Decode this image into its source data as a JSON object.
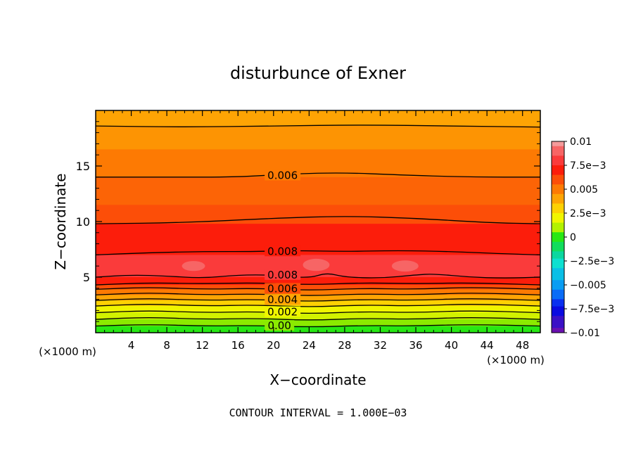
{
  "chart_data": {
    "type": "heatmap",
    "title": "disturbunce of Exner",
    "xlabel": "X−coordinate",
    "ylabel": "Z−coordinate",
    "x_unit_left": "(×1000 m)",
    "x_unit_right": "(×1000 m)",
    "xlim": [
      0,
      50
    ],
    "ylim": [
      0,
      20
    ],
    "x_ticks": [
      {
        "value": 4,
        "label": "4"
      },
      {
        "value": 8,
        "label": "8"
      },
      {
        "value": 12,
        "label": "12"
      },
      {
        "value": 16,
        "label": "16"
      },
      {
        "value": 20,
        "label": "20"
      },
      {
        "value": 24,
        "label": "24"
      },
      {
        "value": 28,
        "label": "28"
      },
      {
        "value": 32,
        "label": "32"
      },
      {
        "value": 36,
        "label": "36"
      },
      {
        "value": 40,
        "label": "40"
      },
      {
        "value": 44,
        "label": "44"
      },
      {
        "value": 48,
        "label": "48"
      }
    ],
    "y_ticks": [
      {
        "value": 5,
        "label": "5"
      },
      {
        "value": 10,
        "label": "10"
      },
      {
        "value": 15,
        "label": "15"
      }
    ],
    "footer": "CONTOUR INTERVAL = 1.000E−03",
    "contour_interval": 0.001,
    "colorbar": {
      "min": -0.01,
      "max": 0.01,
      "levels": [
        {
          "value": 0.01,
          "color": "#f49a9a"
        },
        {
          "value": 0.009,
          "color": "#f76565"
        },
        {
          "value": 0.008,
          "color": "#fa3b3b"
        },
        {
          "value": 0.007,
          "color": "#fc1d0b"
        },
        {
          "value": 0.006,
          "color": "#fc4e08"
        },
        {
          "value": 0.005,
          "color": "#fd7a03"
        },
        {
          "value": 0.004,
          "color": "#fea404"
        },
        {
          "value": 0.003,
          "color": "#fdd103"
        },
        {
          "value": 0.002,
          "color": "#f0f500"
        },
        {
          "value": 0.001,
          "color": "#b2f200"
        },
        {
          "value": 0.0,
          "color": "#28e814"
        },
        {
          "value": -0.001,
          "color": "#11dd5c"
        },
        {
          "value": -0.002,
          "color": "#0ad79f"
        },
        {
          "value": -0.0025,
          "color": "#0de0d0"
        },
        {
          "value": -0.004,
          "color": "#0abfe6"
        },
        {
          "value": -0.005,
          "color": "#0a9df3"
        },
        {
          "value": -0.006,
          "color": "#0a6cf7"
        },
        {
          "value": -0.007,
          "color": "#0a30f0"
        },
        {
          "value": -0.0075,
          "color": "#0a0ae0"
        },
        {
          "value": -0.009,
          "color": "#3a10c6"
        },
        {
          "value": -0.01,
          "color": "#6a10b0"
        }
      ],
      "tick_labels": [
        {
          "value": 0.01,
          "label": "0.01"
        },
        {
          "value": 0.0075,
          "label": "7.5e−3"
        },
        {
          "value": 0.005,
          "label": "0.005"
        },
        {
          "value": 0.0025,
          "label": "2.5e−3"
        },
        {
          "value": 0.0,
          "label": "0"
        },
        {
          "value": -0.0025,
          "label": "−2.5e−3"
        },
        {
          "value": -0.005,
          "label": "−0.005"
        },
        {
          "value": -0.0075,
          "label": "−7.5e−3"
        },
        {
          "value": -0.01,
          "label": "−0.01"
        }
      ]
    },
    "field_bands": [
      {
        "z_bottom": 18.6,
        "z_top": 20.0,
        "color": "#fea404"
      },
      {
        "z_bottom": 16.5,
        "z_top": 18.6,
        "color": "#fd9403"
      },
      {
        "z_bottom": 14.0,
        "z_top": 16.5,
        "color": "#fd7a03"
      },
      {
        "z_bottom": 11.5,
        "z_top": 14.0,
        "color": "#fc6406"
      },
      {
        "z_bottom": 9.8,
        "z_top": 11.5,
        "color": "#fc4e08"
      },
      {
        "z_bottom": 7.0,
        "z_top": 9.8,
        "color": "#fc1d0b"
      },
      {
        "z_bottom": 5.0,
        "z_top": 7.0,
        "color": "#fa3b3b"
      },
      {
        "z_bottom": 4.3,
        "z_top": 5.0,
        "color": "#fc1d0b"
      },
      {
        "z_bottom": 3.9,
        "z_top": 4.3,
        "color": "#fc4e08"
      },
      {
        "z_bottom": 3.4,
        "z_top": 3.9,
        "color": "#fd7a03"
      },
      {
        "z_bottom": 2.9,
        "z_top": 3.4,
        "color": "#fea404"
      },
      {
        "z_bottom": 2.4,
        "z_top": 2.9,
        "color": "#fdd103"
      },
      {
        "z_bottom": 1.8,
        "z_top": 2.4,
        "color": "#f0f500"
      },
      {
        "z_bottom": 1.2,
        "z_top": 1.8,
        "color": "#d2f200"
      },
      {
        "z_bottom": 0.6,
        "z_top": 1.2,
        "color": "#8bea00"
      },
      {
        "z_bottom": 0.0,
        "z_top": 0.6,
        "color": "#28e814"
      }
    ],
    "highlights": [
      {
        "x": 11.0,
        "z": 6.0,
        "rx": 1.3,
        "rz": 0.45,
        "color": "#f76565"
      },
      {
        "x": 24.8,
        "z": 6.1,
        "rx": 1.5,
        "rz": 0.55,
        "color": "#f76565"
      },
      {
        "x": 34.8,
        "z": 6.0,
        "rx": 1.5,
        "rz": 0.5,
        "color": "#f76565"
      }
    ],
    "contours": [
      {
        "level": 0.005,
        "label": "",
        "label_x": null,
        "points": [
          [
            0,
            18.6
          ],
          [
            10,
            18.5
          ],
          [
            20,
            18.6
          ],
          [
            30,
            18.7
          ],
          [
            40,
            18.6
          ],
          [
            50,
            18.5
          ]
        ]
      },
      {
        "level": 0.006,
        "label": "0.006",
        "label_x": 19.0,
        "points": [
          [
            0,
            14.0
          ],
          [
            8,
            14.0
          ],
          [
            16,
            14.0
          ],
          [
            22,
            14.3
          ],
          [
            28,
            14.4
          ],
          [
            34,
            14.2
          ],
          [
            42,
            14.0
          ],
          [
            50,
            14.0
          ]
        ]
      },
      {
        "level": 0.007,
        "label": "",
        "label_x": null,
        "points": [
          [
            0,
            9.8
          ],
          [
            10,
            9.9
          ],
          [
            20,
            10.3
          ],
          [
            28,
            10.5
          ],
          [
            36,
            10.3
          ],
          [
            44,
            9.9
          ],
          [
            50,
            9.8
          ]
        ]
      },
      {
        "level": 0.008,
        "label": "0.008",
        "label_x": 19.0,
        "points": [
          [
            0,
            7.0
          ],
          [
            6,
            7.2
          ],
          [
            12,
            7.3
          ],
          [
            18,
            7.3
          ],
          [
            22,
            7.4
          ],
          [
            28,
            7.3
          ],
          [
            34,
            7.4
          ],
          [
            40,
            7.3
          ],
          [
            46,
            7.1
          ],
          [
            50,
            7.0
          ]
        ]
      },
      {
        "level": 0.008,
        "label": "0.008",
        "label_x": 19.0,
        "points": [
          [
            0,
            5.0
          ],
          [
            4,
            5.2
          ],
          [
            8,
            5.1
          ],
          [
            12,
            4.9
          ],
          [
            16,
            5.2
          ],
          [
            20,
            5.2
          ],
          [
            24,
            4.9
          ],
          [
            26,
            5.4
          ],
          [
            28,
            5.0
          ],
          [
            32,
            4.9
          ],
          [
            36,
            5.2
          ],
          [
            38,
            5.3
          ],
          [
            42,
            5.0
          ],
          [
            46,
            4.9
          ],
          [
            50,
            5.0
          ]
        ]
      },
      {
        "level": 0.007,
        "label": "",
        "label_x": null,
        "points": [
          [
            0,
            4.3
          ],
          [
            6,
            4.5
          ],
          [
            12,
            4.4
          ],
          [
            18,
            4.5
          ],
          [
            24,
            4.3
          ],
          [
            30,
            4.5
          ],
          [
            36,
            4.4
          ],
          [
            42,
            4.5
          ],
          [
            50,
            4.3
          ]
        ]
      },
      {
        "level": 0.006,
        "label": "0.006",
        "label_x": 19.0,
        "points": [
          [
            0,
            3.9
          ],
          [
            6,
            4.1
          ],
          [
            12,
            3.9
          ],
          [
            18,
            4.0
          ],
          [
            24,
            3.8
          ],
          [
            30,
            4.0
          ],
          [
            36,
            3.9
          ],
          [
            42,
            4.1
          ],
          [
            50,
            3.9
          ]
        ]
      },
      {
        "level": 0.005,
        "label": "",
        "label_x": null,
        "points": [
          [
            0,
            3.4
          ],
          [
            6,
            3.6
          ],
          [
            12,
            3.4
          ],
          [
            18,
            3.5
          ],
          [
            24,
            3.3
          ],
          [
            30,
            3.5
          ],
          [
            36,
            3.4
          ],
          [
            42,
            3.6
          ],
          [
            50,
            3.4
          ]
        ]
      },
      {
        "level": 0.004,
        "label": "0.004",
        "label_x": 19.0,
        "points": [
          [
            0,
            2.9
          ],
          [
            6,
            3.1
          ],
          [
            12,
            2.9
          ],
          [
            18,
            3.0
          ],
          [
            24,
            2.8
          ],
          [
            30,
            3.0
          ],
          [
            36,
            2.9
          ],
          [
            42,
            3.1
          ],
          [
            50,
            2.9
          ]
        ]
      },
      {
        "level": 0.003,
        "label": "",
        "label_x": null,
        "points": [
          [
            0,
            2.4
          ],
          [
            6,
            2.6
          ],
          [
            12,
            2.4
          ],
          [
            18,
            2.5
          ],
          [
            24,
            2.3
          ],
          [
            30,
            2.5
          ],
          [
            36,
            2.4
          ],
          [
            42,
            2.6
          ],
          [
            50,
            2.4
          ]
        ]
      },
      {
        "level": 0.002,
        "label": "0.002",
        "label_x": 19.0,
        "points": [
          [
            0,
            1.8
          ],
          [
            6,
            2.0
          ],
          [
            12,
            1.8
          ],
          [
            18,
            1.9
          ],
          [
            24,
            1.7
          ],
          [
            30,
            1.9
          ],
          [
            36,
            1.8
          ],
          [
            42,
            2.0
          ],
          [
            50,
            1.8
          ]
        ]
      },
      {
        "level": 0.001,
        "label": "",
        "label_x": null,
        "points": [
          [
            0,
            1.2
          ],
          [
            6,
            1.4
          ],
          [
            12,
            1.2
          ],
          [
            18,
            1.3
          ],
          [
            24,
            1.1
          ],
          [
            30,
            1.3
          ],
          [
            36,
            1.2
          ],
          [
            42,
            1.4
          ],
          [
            50,
            1.2
          ]
        ]
      },
      {
        "level": 0.0,
        "label": "0.00",
        "label_x": 19.0,
        "points": [
          [
            0,
            0.6
          ],
          [
            6,
            0.75
          ],
          [
            12,
            0.6
          ],
          [
            18,
            0.65
          ],
          [
            24,
            0.5
          ],
          [
            30,
            0.65
          ],
          [
            36,
            0.6
          ],
          [
            42,
            0.75
          ],
          [
            50,
            0.6
          ]
        ]
      }
    ]
  }
}
